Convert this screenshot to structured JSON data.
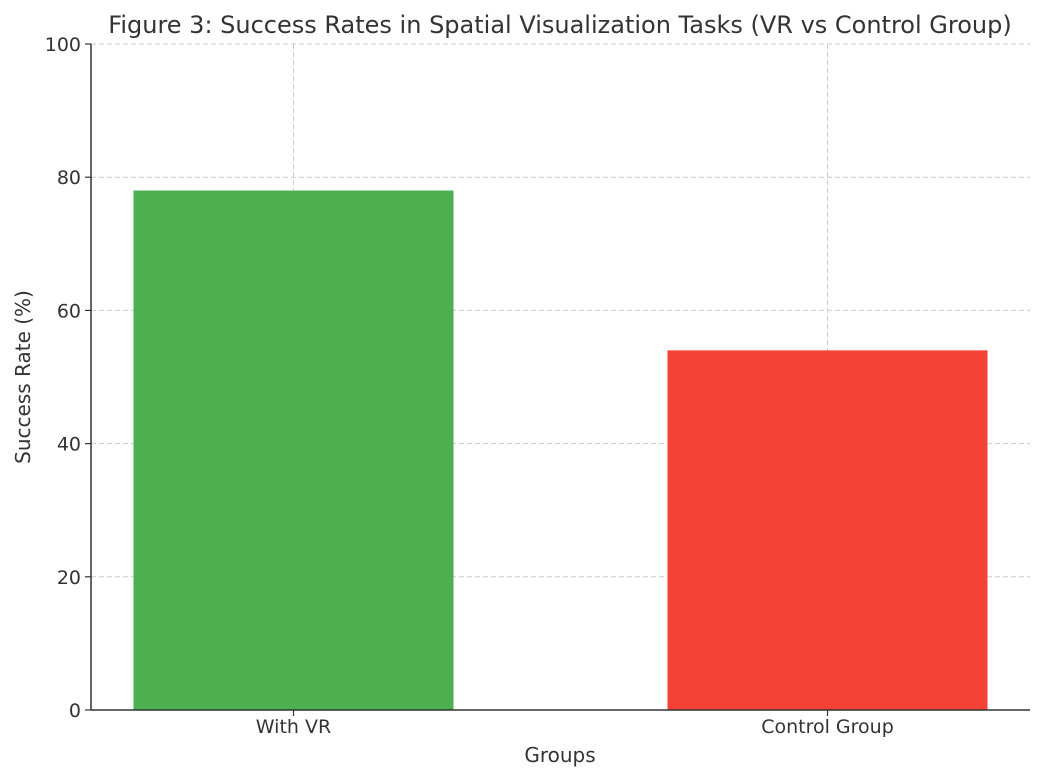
{
  "chart_data": {
    "type": "bar",
    "title": "Figure 3: Success Rates in Spatial Visualization Tasks (VR vs Control Group)",
    "xlabel": "Groups",
    "ylabel": "Success Rate (%)",
    "categories": [
      "With VR",
      "Control Group"
    ],
    "values": [
      78,
      54
    ],
    "colors": [
      "#4caf50",
      "#f44336"
    ],
    "ylim": [
      0,
      100
    ],
    "yticks": [
      0,
      20,
      40,
      60,
      80,
      100
    ],
    "grid": true
  }
}
